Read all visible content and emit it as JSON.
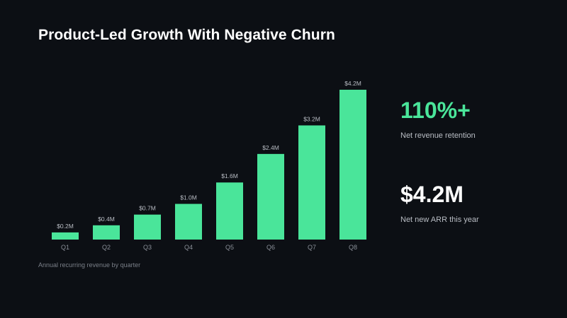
{
  "title": "Product-Led Growth With Negative Churn",
  "caption": "Annual recurring revenue by quarter",
  "colors": {
    "background": "#0c0f14",
    "bar": "#4ae59a",
    "accent": "#4ae59a",
    "text": "#ffffff",
    "muted": "#7a7f88"
  },
  "stats": [
    {
      "value": "110%+",
      "label": "Net revenue retention",
      "color": "#4ae59a"
    },
    {
      "value": "$4.2M",
      "label": "Net new ARR this year",
      "color": "#ffffff"
    }
  ],
  "chart_data": {
    "type": "bar",
    "title": "",
    "xlabel": "",
    "ylabel": "",
    "unit": "$M",
    "grid": false,
    "legend": "none",
    "ylim": [
      0,
      4.2
    ],
    "categories": [
      "Q1",
      "Q2",
      "Q3",
      "Q4",
      "Q5",
      "Q6",
      "Q7",
      "Q8"
    ],
    "values": [
      0.2,
      0.4,
      0.7,
      1.0,
      1.6,
      2.4,
      3.2,
      4.2
    ],
    "labels": [
      "$0.2M",
      "$0.4M",
      "$0.7M",
      "$1.0M",
      "$1.6M",
      "$2.4M",
      "$3.2M",
      "$4.2M"
    ]
  }
}
